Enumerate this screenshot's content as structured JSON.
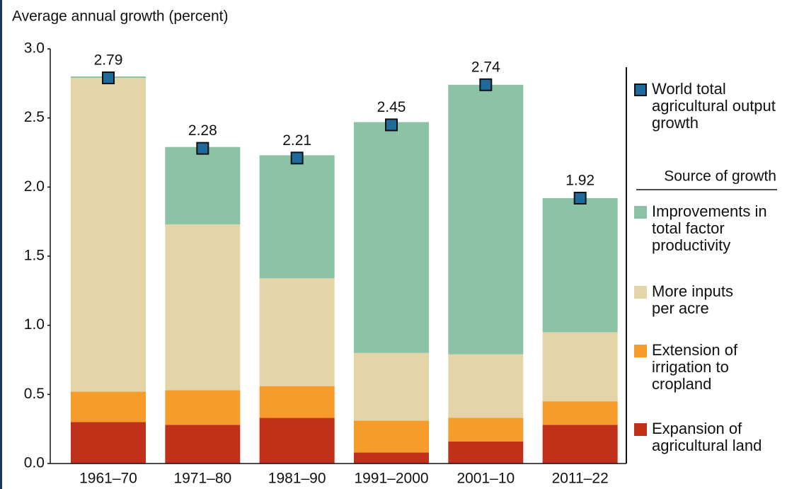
{
  "chart_data": {
    "type": "stacked_bar",
    "y_label": "Average annual growth (percent)",
    "categories": [
      "1961–70",
      "1971–80",
      "1981–90",
      "1991–2000",
      "2001–10",
      "2011–22"
    ],
    "series": [
      {
        "name": "Expansion of agricultural land",
        "color": "#c0311a",
        "values": [
          0.3,
          0.28,
          0.33,
          0.08,
          0.16,
          0.28
        ]
      },
      {
        "name": "Extension of irrigation to cropland",
        "color": "#f59c2a",
        "values": [
          0.22,
          0.25,
          0.23,
          0.23,
          0.17,
          0.17
        ]
      },
      {
        "name": "More inputs per acre",
        "color": "#e4d5a8",
        "values": [
          2.27,
          1.2,
          0.78,
          0.49,
          0.46,
          0.5
        ]
      },
      {
        "name": "Improvements in total factor productivity",
        "color": "#8cc3a6",
        "values": [
          0.01,
          0.56,
          0.89,
          1.67,
          1.95,
          0.97
        ]
      }
    ],
    "markers": {
      "name": "World total agricultural output growth",
      "color": "#1f6a9a",
      "values": [
        2.79,
        2.28,
        2.21,
        2.45,
        2.74,
        1.92
      ]
    },
    "legend_title": "Source of growth",
    "ylim": [
      0,
      3
    ],
    "yticks": [
      {
        "value": 0,
        "label": "0.0"
      },
      0.5,
      {
        "value": 1,
        "label": "1.0"
      },
      1.5,
      {
        "value": 2,
        "label": "2.0"
      },
      2.5,
      {
        "value": 3,
        "label": "3.0"
      }
    ]
  }
}
